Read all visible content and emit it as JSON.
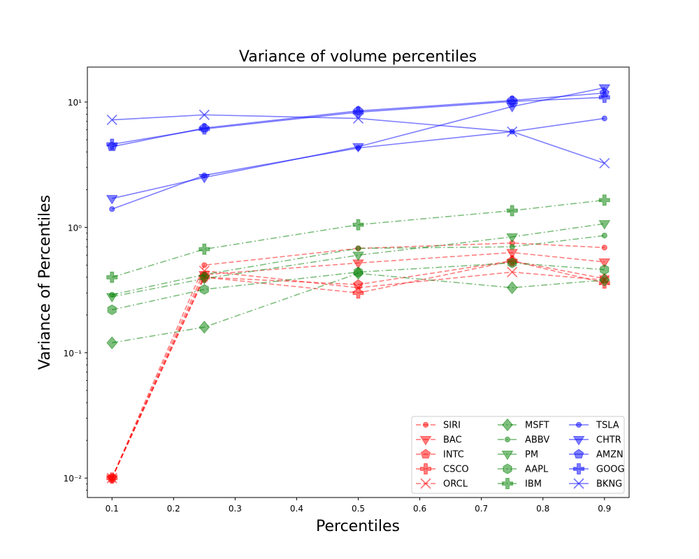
{
  "chart_data": {
    "type": "line",
    "title": "Variance of volume percentiles",
    "xlabel": "Percentiles",
    "ylabel": "Variance of Percentiles",
    "xscale": "linear",
    "yscale": "log",
    "xlim": [
      0.06,
      0.94
    ],
    "ylim": [
      0.007,
      19
    ],
    "xticks": [
      0.1,
      0.2,
      0.3,
      0.4,
      0.5,
      0.6,
      0.7,
      0.8,
      0.9
    ],
    "xtick_labels": [
      "0.1",
      "0.2",
      "0.3",
      "0.4",
      "0.5",
      "0.6",
      "0.7",
      "0.8",
      "0.9"
    ],
    "yticks": [
      0.01,
      0.1,
      1,
      10
    ],
    "ytick_labels": [
      "10⁻²",
      "10⁻¹",
      "10⁰",
      "10¹"
    ],
    "grid": false,
    "legend_position": "lower-right",
    "legend_columns": 3,
    "x": [
      0.1,
      0.25,
      0.5,
      0.75,
      0.9
    ],
    "series": [
      {
        "name": "SIRI",
        "color": "#ff0000",
        "linestyle": "dashed",
        "marker": "circle",
        "values": [
          0.01,
          0.5,
          0.68,
          0.75,
          0.69
        ]
      },
      {
        "name": "BAC",
        "color": "#ff0000",
        "linestyle": "dashed",
        "marker": "triangle-down",
        "values": [
          0.01,
          0.42,
          0.52,
          0.63,
          0.53
        ]
      },
      {
        "name": "INTC",
        "color": "#ff0000",
        "linestyle": "dashed",
        "marker": "pentagon",
        "values": [
          0.01,
          0.4,
          0.35,
          0.54,
          0.39
        ]
      },
      {
        "name": "CSCO",
        "color": "#ff0000",
        "linestyle": "dashed",
        "marker": "plus",
        "values": [
          0.01,
          0.4,
          0.3,
          0.54,
          0.36
        ]
      },
      {
        "name": "ORCL",
        "color": "#ff0000",
        "linestyle": "dashed",
        "marker": "x",
        "values": [
          0.01,
          0.45,
          0.33,
          0.44,
          0.38
        ]
      },
      {
        "name": "MSFT",
        "color": "#008000",
        "linestyle": "dashdot",
        "marker": "diamond",
        "values": [
          0.12,
          0.16,
          0.43,
          0.33,
          0.38
        ]
      },
      {
        "name": "ABBV",
        "color": "#008000",
        "linestyle": "dashdot",
        "marker": "circle",
        "values": [
          0.29,
          0.42,
          0.68,
          0.7,
          0.86
        ]
      },
      {
        "name": "PM",
        "color": "#008000",
        "linestyle": "dashdot",
        "marker": "triangle-down",
        "values": [
          0.28,
          0.39,
          0.6,
          0.84,
          1.07
        ]
      },
      {
        "name": "AAPL",
        "color": "#008000",
        "linestyle": "dashdot",
        "marker": "hexagon",
        "values": [
          0.22,
          0.32,
          0.44,
          0.52,
          0.46
        ]
      },
      {
        "name": "IBM",
        "color": "#008000",
        "linestyle": "dashdot",
        "marker": "plus",
        "values": [
          0.4,
          0.67,
          1.05,
          1.36,
          1.65
        ]
      },
      {
        "name": "TSLA",
        "color": "#0000ff",
        "linestyle": "solid",
        "marker": "circle",
        "values": [
          1.4,
          2.6,
          4.3,
          5.8,
          7.4
        ]
      },
      {
        "name": "CHTR",
        "color": "#0000ff",
        "linestyle": "solid",
        "marker": "triangle-down",
        "values": [
          1.7,
          2.5,
          4.4,
          9.2,
          13.0
        ]
      },
      {
        "name": "AMZN",
        "color": "#0000ff",
        "linestyle": "solid",
        "marker": "pentagon",
        "values": [
          4.4,
          6.2,
          8.5,
          10.3,
          11.8
        ]
      },
      {
        "name": "GOOG",
        "color": "#0000ff",
        "linestyle": "solid",
        "marker": "plus",
        "values": [
          4.6,
          6.1,
          8.3,
          10.1,
          10.9
        ]
      },
      {
        "name": "BKNG",
        "color": "#0000ff",
        "linestyle": "solid",
        "marker": "x",
        "values": [
          7.2,
          7.9,
          7.4,
          5.8,
          3.25
        ]
      }
    ]
  }
}
